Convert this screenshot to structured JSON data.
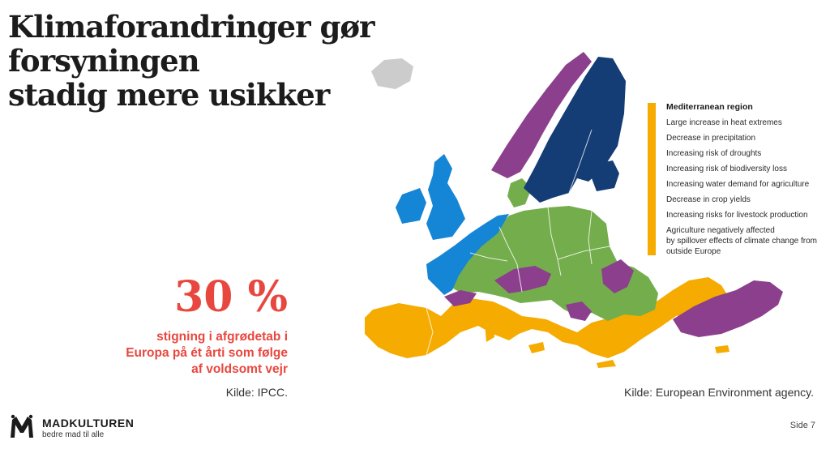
{
  "title": {
    "line1": "Klimaforandringer gør forsyningen",
    "line2": "stadig mere usikker"
  },
  "stat": {
    "value": "30 %",
    "line1": "stigning i afgrødetab i",
    "line2": "Europa på ét årti som følge",
    "line3": "af voldsomt vejr"
  },
  "sources": {
    "left": "Kilde: IPCC.",
    "right": "Kilde: European Environment agency."
  },
  "legend": {
    "title": "Mediterranean region",
    "items": [
      "Large increase in heat extremes",
      "Decrease in precipitation",
      "Increasing risk of droughts",
      "Increasing risk of biodiversity loss",
      "Increasing water demand for agriculture",
      "Decrease in crop yields",
      "Increasing risks for livestock production",
      "Agriculture negatively affected",
      "by spillover effects of climate change from",
      "outside Europe"
    ]
  },
  "map_colors": {
    "mediterranean": "#f5ab00",
    "continental": "#74ad4c",
    "atlantic": "#1585d6",
    "boreal": "#143c75",
    "mountain": "#8b3f8d",
    "arctic": "#cccccc"
  },
  "brand": {
    "name": "MADKULTUREN",
    "tagline": "bedre mad til alle"
  },
  "page": "Side 7",
  "colors": {
    "accent": "#e8473f",
    "legend_bar": "#f5ab00"
  }
}
